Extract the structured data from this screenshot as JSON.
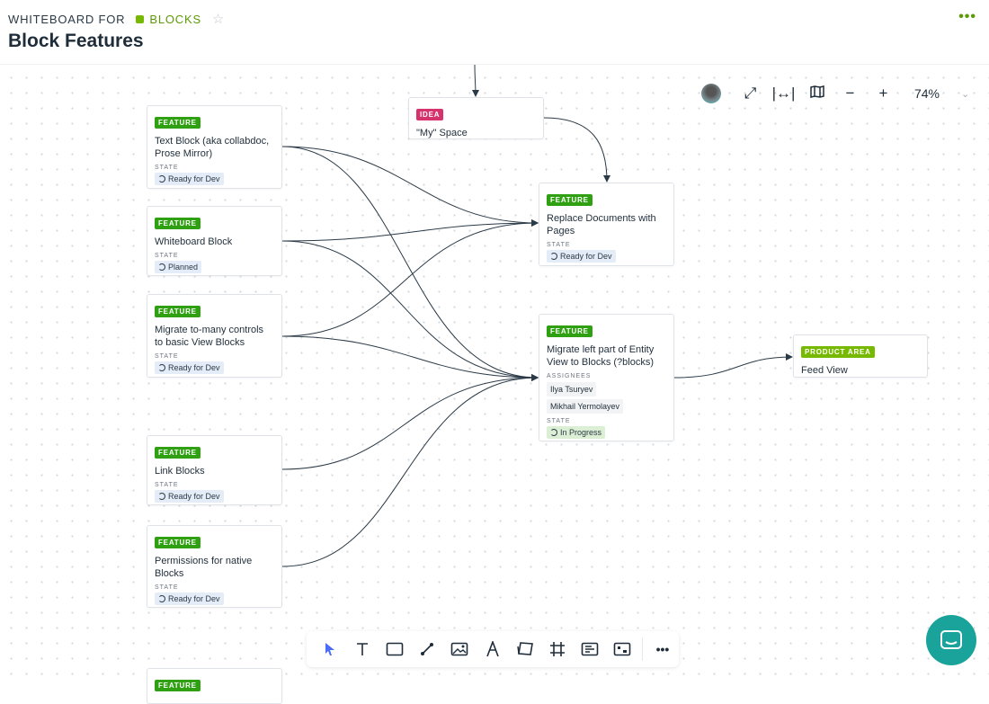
{
  "header": {
    "breadcrumb_prefix": "WHITEBOARD FOR",
    "breadcrumb_space": "BLOCKS",
    "title": "Block Features",
    "more_label": "•••"
  },
  "zoom": {
    "level": "74%"
  },
  "cards": {
    "text_block": {
      "tag": "FEATURE",
      "title": "Text Block (aka collabdoc, Prose Mirror)",
      "state_label": "STATE",
      "state": "Ready for Dev"
    },
    "whiteboard_block": {
      "tag": "FEATURE",
      "title": "Whiteboard Block",
      "state_label": "STATE",
      "state": "Planned"
    },
    "migrate_to_many": {
      "tag": "FEATURE",
      "title": "Migrate to-many controls to basic View Blocks",
      "state_label": "STATE",
      "state": "Ready for Dev"
    },
    "link_blocks": {
      "tag": "FEATURE",
      "title": "Link Blocks",
      "state_label": "STATE",
      "state": "Ready for Dev"
    },
    "permissions": {
      "tag": "FEATURE",
      "title": "Permissions for native Blocks",
      "state_label": "STATE",
      "state": "Ready for Dev"
    },
    "partial": {
      "tag": "FEATURE"
    },
    "my_space": {
      "tag": "IDEA",
      "title": "\"My\" Space"
    },
    "replace_docs": {
      "tag": "FEATURE",
      "title": "Replace Documents with Pages",
      "state_label": "STATE",
      "state": "Ready for Dev"
    },
    "migrate_left": {
      "tag": "FEATURE",
      "title": "Migrate left part of Entity View to Blocks (?blocks)",
      "assignees_label": "ASSIGNEES",
      "assignees": [
        "Ilya Tsuryev",
        "Mikhail Yermolayev"
      ],
      "state_label": "STATE",
      "state": "In Progress"
    },
    "feed_view": {
      "tag": "PRODUCT AREA",
      "title": "Feed View"
    }
  },
  "colors": {
    "feature": "#2ea012",
    "idea": "#d6336c",
    "product_area": "#76b900",
    "accent": "#5c9a06",
    "chat": "#1aa39a",
    "select_tool": "#4a6cf7"
  },
  "toolbar": {
    "tools": [
      "select",
      "text",
      "rectangle",
      "line",
      "image",
      "pen",
      "sticky-notes",
      "frame",
      "text-card",
      "entity-card",
      "more"
    ]
  }
}
